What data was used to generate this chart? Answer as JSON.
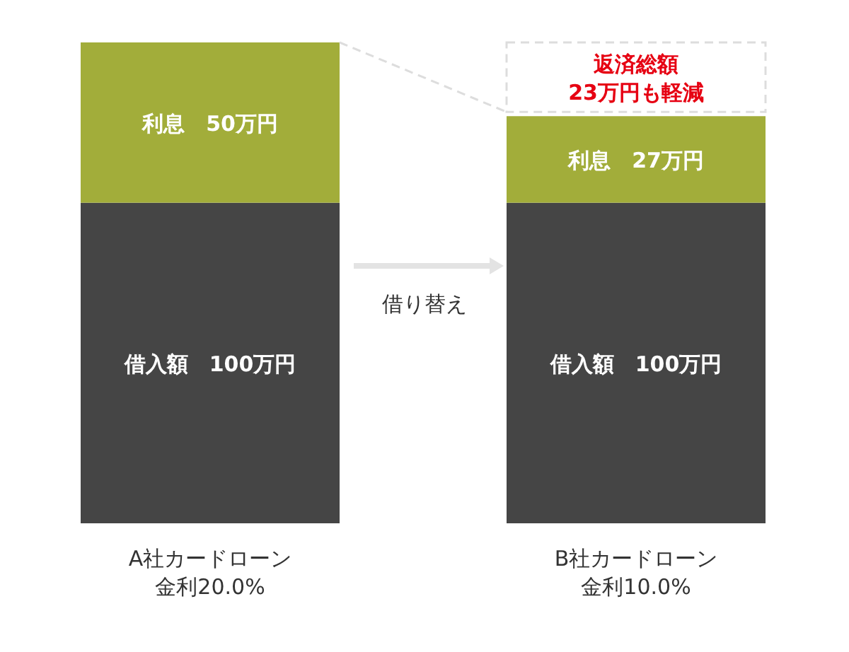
{
  "chart_data": {
    "type": "bar",
    "stacked": true,
    "categories": [
      "A社カードローン金利20.0%",
      "B社カードローン金利10.0%"
    ],
    "series": [
      {
        "color": "#454545",
        "values": [
          100,
          100
        ],
        "value_labels": [
          "借入額　100万円",
          "借入額　100万円"
        ]
      },
      {
        "color": "#a2ad3a",
        "values": [
          50,
          27
        ],
        "value_labels": [
          "利息　50万円",
          "利息　27万円"
        ]
      }
    ],
    "annotations": [
      "借り替え",
      "返済総額\n23万円も軽減"
    ]
  }
}
